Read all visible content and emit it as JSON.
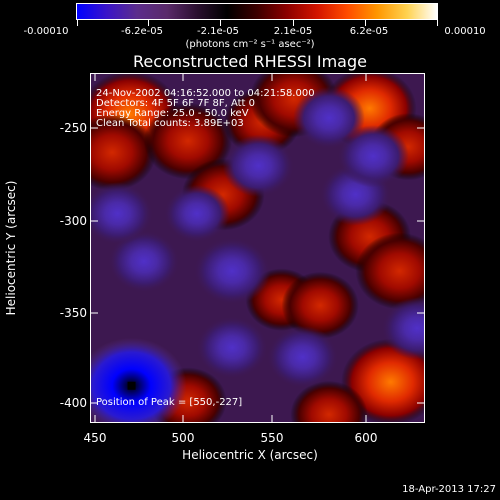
{
  "colorbar": {
    "tick_labels": [
      "-0.00010",
      "-6.2e-05",
      "-2.1e-05",
      "2.1e-05",
      "6.2e-05",
      "0.00010"
    ],
    "units": "(photons cm⁻² s⁻¹ asec⁻²)",
    "gradient_stops": [
      "#0000ff",
      "#3a14c8",
      "#5c2d8c",
      "#5a2a6a",
      "#2a0f2f",
      "#000000",
      "#3c0000",
      "#8c0000",
      "#d21400",
      "#ff4b00",
      "#ff9600",
      "#ffd250",
      "#ffffff"
    ]
  },
  "plot": {
    "title": "Reconstructed RHESSI Image",
    "info_lines": [
      "24-Nov-2002 04:16:52.000 to 04:21:58.000",
      "Detectors: 4F 5F 6F 7F 8F, Att 0",
      "Energy Range: 25.0 - 50.0 keV",
      "Clean     Total counts: 3.89E+03"
    ],
    "peak_text": "Position of Peak = [550,-227]",
    "xlabel": "Heliocentric X (arcsec)",
    "ylabel": "Heliocentric Y (arcsec)",
    "x_ticks": [
      "450",
      "500",
      "550",
      "600"
    ],
    "y_ticks": [
      "-250",
      "-300",
      "-350",
      "-400"
    ]
  },
  "footer": {
    "timestamp": "18-Apr-2013 17:27"
  },
  "chart_data": {
    "type": "heatmap",
    "title": "Reconstructed RHESSI Image",
    "xlabel": "Heliocentric X (arcsec)",
    "ylabel": "Heliocentric Y (arcsec)",
    "xlim": [
      440,
      630
    ],
    "ylim": [
      -410,
      -227
    ],
    "colorbar_range": [
      -0.0001,
      0.0001
    ],
    "colorbar_units": "(photons cm⁻² s⁻¹ asec⁻²)",
    "peak_position": [
      550,
      -227
    ],
    "blobs": [
      {
        "x": 462,
        "y": -248,
        "value": 8e-05
      },
      {
        "x": 452,
        "y": -268,
        "value": 6e-05
      },
      {
        "x": 495,
        "y": -262,
        "value": 6e-05
      },
      {
        "x": 515,
        "y": -290,
        "value": 5e-05
      },
      {
        "x": 537,
        "y": -252,
        "value": 4e-05
      },
      {
        "x": 555,
        "y": -240,
        "value": 6e-05
      },
      {
        "x": 598,
        "y": -245,
        "value": 7e-05
      },
      {
        "x": 620,
        "y": -265,
        "value": 4e-05
      },
      {
        "x": 598,
        "y": -312,
        "value": 5e-05
      },
      {
        "x": 615,
        "y": -330,
        "value": 6e-05
      },
      {
        "x": 548,
        "y": -345,
        "value": 3e-05
      },
      {
        "x": 570,
        "y": -348,
        "value": 4e-05
      },
      {
        "x": 610,
        "y": -388,
        "value": 8e-05
      },
      {
        "x": 495,
        "y": -398,
        "value": 4e-05
      },
      {
        "x": 575,
        "y": -405,
        "value": 4e-05
      },
      {
        "x": 463,
        "y": -390,
        "value": -0.0001
      },
      {
        "x": 470,
        "y": -325,
        "value": -3e-05
      },
      {
        "x": 520,
        "y": -330,
        "value": -4e-05
      },
      {
        "x": 535,
        "y": -275,
        "value": -3e-05
      },
      {
        "x": 590,
        "y": -290,
        "value": -3e-05
      },
      {
        "x": 575,
        "y": -250,
        "value": -3e-05
      },
      {
        "x": 520,
        "y": -370,
        "value": -3e-05
      },
      {
        "x": 625,
        "y": -360,
        "value": -3e-05
      },
      {
        "x": 560,
        "y": -375,
        "value": -3e-05
      },
      {
        "x": 455,
        "y": -300,
        "value": -3e-05
      },
      {
        "x": 500,
        "y": -300,
        "value": -2e-05
      },
      {
        "x": 600,
        "y": -270,
        "value": -3e-05
      }
    ]
  }
}
